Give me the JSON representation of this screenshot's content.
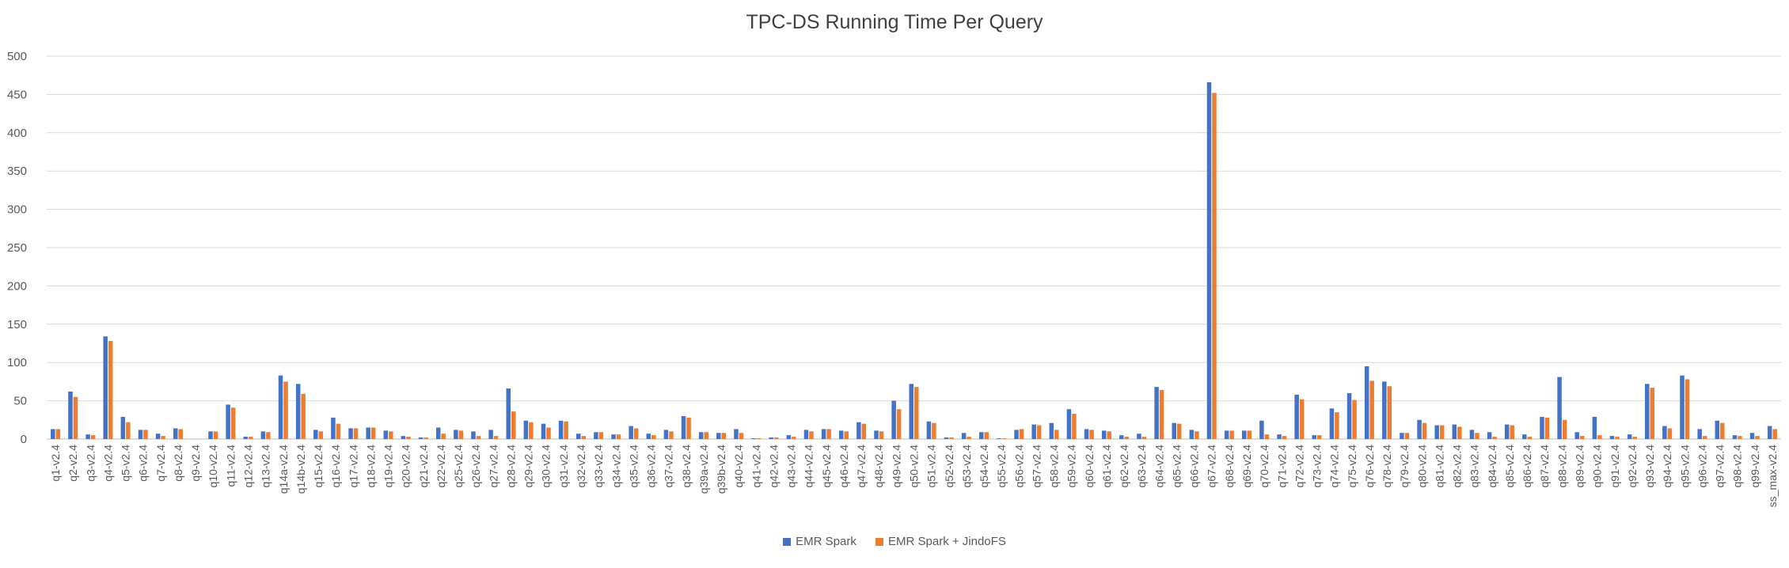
{
  "chart_data": {
    "type": "bar",
    "title": "TPC-DS Running Time Per Query",
    "xlabel": "",
    "ylabel": "",
    "ylim": [
      0,
      500
    ],
    "yticks": [
      0,
      50,
      100,
      150,
      200,
      250,
      300,
      350,
      400,
      450,
      500
    ],
    "grid": true,
    "legend_position": "bottom",
    "categories": [
      "q1-v2.4",
      "q2-v2.4",
      "q3-v2.4",
      "q4-v2.4",
      "q5-v2.4",
      "q6-v2.4",
      "q7-v2.4",
      "q8-v2.4",
      "q9-v2.4",
      "q10-v2.4",
      "q11-v2.4",
      "q12-v2.4",
      "q13-v2.4",
      "q14a-v2.4",
      "q14b-v2.4",
      "q15-v2.4",
      "q16-v2.4",
      "q17-v2.4",
      "q18-v2.4",
      "q19-v2.4",
      "q20-v2.4",
      "q21-v2.4",
      "q22-v2.4",
      "q25-v2.4",
      "q26-v2.4",
      "q27-v2.4",
      "q28-v2.4",
      "q29-v2.4",
      "q30-v2.4",
      "q31-v2.4",
      "q32-v2.4",
      "q33-v2.4",
      "q34-v2.4",
      "q35-v2.4",
      "q36-v2.4",
      "q37-v2.4",
      "q38-v2.4",
      "q39a-v2.4",
      "q39b-v2.4",
      "q40-v2.4",
      "q41-v2.4",
      "q42-v2.4",
      "q43-v2.4",
      "q44-v2.4",
      "q45-v2.4",
      "q46-v2.4",
      "q47-v2.4",
      "q48-v2.4",
      "q49-v2.4",
      "q50-v2.4",
      "q51-v2.4",
      "q52-v2.4",
      "q53-v2.4",
      "q54-v2.4",
      "q55-v2.4",
      "q56-v2.4",
      "q57-v2.4",
      "q58-v2.4",
      "q59-v2.4",
      "q60-v2.4",
      "q61-v2.4",
      "q62-v2.4",
      "q63-v2.4",
      "q64-v2.4",
      "q65-v2.4",
      "q66-v2.4",
      "q67-v2.4",
      "q68-v2.4",
      "q69-v2.4",
      "q70-v2.4",
      "q71-v2.4",
      "q72-v2.4",
      "q73-v2.4",
      "q74-v2.4",
      "q75-v2.4",
      "q76-v2.4",
      "q78-v2.4",
      "q79-v2.4",
      "q80-v2.4",
      "q81-v2.4",
      "q82-v2.4",
      "q83-v2.4",
      "q84-v2.4",
      "q85-v2.4",
      "q86-v2.4",
      "q87-v2.4",
      "q88-v2.4",
      "q89-v2.4",
      "q90-v2.4",
      "q91-v2.4",
      "q92-v2.4",
      "q93-v2.4",
      "q94-v2.4",
      "q95-v2.4",
      "q96-v2.4",
      "q97-v2.4",
      "q98-v2.4",
      "q99-v2.4",
      "ss_max-v2.4"
    ],
    "series": [
      {
        "name": "EMR Spark",
        "color": "#4472C4",
        "values": [
          13,
          62,
          6,
          134,
          29,
          12,
          7,
          14,
          0,
          10,
          45,
          3,
          10,
          83,
          72,
          12,
          28,
          14,
          15,
          11,
          4,
          2,
          15,
          12,
          10,
          12,
          66,
          24,
          20,
          24,
          7,
          9,
          6,
          17,
          7,
          12,
          30,
          9,
          8,
          13,
          1,
          2,
          5,
          12,
          13,
          11,
          22,
          11,
          50,
          72,
          23,
          2,
          8,
          9,
          1,
          12,
          19,
          21,
          39,
          13,
          11,
          5,
          7,
          68,
          21,
          12,
          466,
          11,
          11,
          24,
          6,
          58,
          5,
          40,
          60,
          95,
          75,
          8,
          25,
          18,
          19,
          12,
          9,
          19,
          6,
          29,
          81,
          9,
          29,
          4,
          6,
          72,
          17,
          83,
          13,
          24,
          5,
          8,
          17
        ]
      },
      {
        "name": "EMR Spark + JindoFS",
        "color": "#ED7D31",
        "values": [
          13,
          55,
          5,
          128,
          22,
          12,
          4,
          13,
          0,
          10,
          41,
          3,
          9,
          75,
          59,
          10,
          20,
          14,
          15,
          10,
          3,
          2,
          7,
          11,
          4,
          4,
          36,
          22,
          15,
          23,
          4,
          9,
          6,
          14,
          5,
          10,
          28,
          9,
          8,
          8,
          1,
          2,
          3,
          10,
          13,
          10,
          20,
          10,
          39,
          68,
          21,
          2,
          3,
          9,
          1,
          13,
          18,
          12,
          33,
          12,
          10,
          3,
          3,
          64,
          20,
          10,
          452,
          11,
          11,
          6,
          4,
          52,
          5,
          35,
          51,
          76,
          69,
          8,
          21,
          18,
          16,
          8,
          3,
          18,
          3,
          28,
          25,
          4,
          5,
          3,
          3,
          67,
          14,
          78,
          4,
          21,
          4,
          4,
          13
        ]
      }
    ]
  }
}
